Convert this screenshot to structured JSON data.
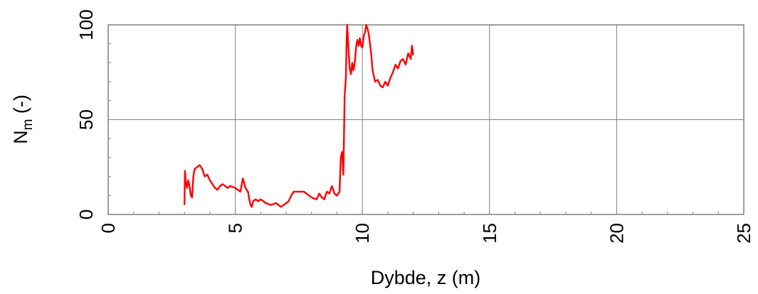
{
  "chart_data": {
    "type": "line",
    "xlabel": "Dybde, z (m)",
    "ylabel_main": "N",
    "ylabel_sub": "m",
    "ylabel_suffix": " (-)",
    "xlim": [
      0,
      25
    ],
    "ylim": [
      0,
      100
    ],
    "x_ticks": [
      "0",
      "5",
      "10",
      "15",
      "20",
      "25"
    ],
    "y_ticks": [
      "0",
      "50",
      "100"
    ],
    "grid": true,
    "line_color": "#ff0000",
    "grid_color": "#808080",
    "series": [
      {
        "x": [
          3.0,
          3.02,
          3.05,
          3.1,
          3.15,
          3.2,
          3.25,
          3.3,
          3.35,
          3.4,
          3.5,
          3.6,
          3.7,
          3.75,
          3.8,
          3.9,
          4.0,
          4.1,
          4.2,
          4.3,
          4.4,
          4.5,
          4.6,
          4.7,
          4.8,
          5.0,
          5.2,
          5.3,
          5.4,
          5.5,
          5.55,
          5.6,
          5.65,
          5.7,
          5.8,
          5.9,
          6.0,
          6.2,
          6.4,
          6.6,
          6.8,
          7.0,
          7.1,
          7.2,
          7.3,
          7.5,
          7.7,
          7.9,
          8.0,
          8.2,
          8.3,
          8.4,
          8.5,
          8.6,
          8.7,
          8.8,
          8.9,
          9.0,
          9.1,
          9.15,
          9.2,
          9.25,
          9.3,
          9.35,
          9.38,
          9.4,
          9.45,
          9.5,
          9.55,
          9.6,
          9.65,
          9.7,
          9.75,
          9.8,
          9.85,
          9.9,
          9.95,
          10.0,
          10.05,
          10.1,
          10.15,
          10.2,
          10.25,
          10.3,
          10.35,
          10.4,
          10.5,
          10.6,
          10.7,
          10.8,
          10.9,
          11.0,
          11.1,
          11.2,
          11.3,
          11.4,
          11.5,
          11.6,
          11.7,
          11.8,
          11.9,
          11.95,
          12.0
        ],
        "y": [
          5,
          23,
          18,
          14,
          18,
          15,
          10,
          9,
          20,
          24,
          25,
          26,
          24,
          22,
          20,
          21,
          18,
          16,
          14,
          13,
          15,
          16,
          15,
          14,
          15,
          14,
          12,
          19,
          14,
          12,
          8,
          5,
          4,
          7,
          8,
          7,
          8,
          6,
          5,
          6,
          4,
          6,
          7,
          10,
          12,
          12,
          12,
          10,
          9,
          8,
          11,
          9,
          8,
          12,
          11,
          15,
          11,
          10,
          12,
          30,
          33,
          21,
          62,
          72,
          92,
          100,
          88,
          77,
          74,
          80,
          76,
          80,
          88,
          92,
          89,
          93,
          89,
          88,
          94,
          96,
          100,
          98,
          95,
          90,
          84,
          76,
          70,
          71,
          68,
          67,
          70,
          68,
          72,
          75,
          79,
          77,
          81,
          82,
          79,
          85,
          82,
          89,
          84
        ]
      }
    ]
  }
}
